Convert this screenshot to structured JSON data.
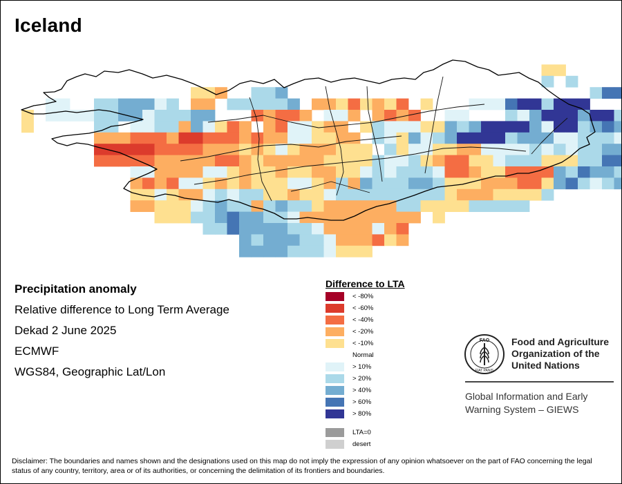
{
  "map": {
    "title": "Iceland",
    "colors": {
      "lt80": "#a50026",
      "lt60": "#dc3b2c",
      "lt40": "#f46d43",
      "lt20": "#fdae61",
      "lt10": "#fee090",
      "normal": "#ffffff",
      "gt10": "#e0f3f8",
      "gt20": "#abd9e9",
      "gt40": "#74add1",
      "gt60": "#4575b4",
      "gt80": "#313695",
      "lta0": "#9b9b9b",
      "desert": "#cfcfcf"
    }
  },
  "info": {
    "title": "Precipitation anomaly",
    "subtitle": "Relative difference to Long Term Average",
    "period": "Dekad 2 June 2025",
    "source": "ECMWF",
    "projection": "WGS84, Geographic Lat/Lon"
  },
  "legend": {
    "title": "Difference to LTA",
    "items": [
      {
        "label": "< -80%",
        "color_key": "lt80"
      },
      {
        "label": "< -60%",
        "color_key": "lt60"
      },
      {
        "label": "< -40%",
        "color_key": "lt40"
      },
      {
        "label": "< -20%",
        "color_key": "lt20"
      },
      {
        "label": "< -10%",
        "color_key": "lt10"
      },
      {
        "label": "Normal",
        "color_key": "normal"
      },
      {
        "label": "> 10%",
        "color_key": "gt10"
      },
      {
        "label": "> 20%",
        "color_key": "gt20"
      },
      {
        "label": "> 40%",
        "color_key": "gt40"
      },
      {
        "label": "> 60%",
        "color_key": "gt60"
      },
      {
        "label": "> 80%",
        "color_key": "gt80"
      },
      {
        "label": "LTA=0",
        "color_key": "lta0"
      },
      {
        "label": "desert",
        "color_key": "desert"
      }
    ]
  },
  "logo": {
    "org_name": "Food and Agriculture\nOrganization of the\nUnited Nations",
    "emblem_letters": "FAO",
    "emblem_motto": "FIAT PANIS",
    "system_name": "Global Information and Early\nWarning System – GIEWS"
  },
  "disclaimer": "Disclaimer: The boundaries and names shown and the designations used on this map do not imply the expression of any opinion whatsoever on the part of FAO concerning the legal status of any country, territory, area or of its authorities, or concerning the delimitation of its frontiers and boundaries."
}
